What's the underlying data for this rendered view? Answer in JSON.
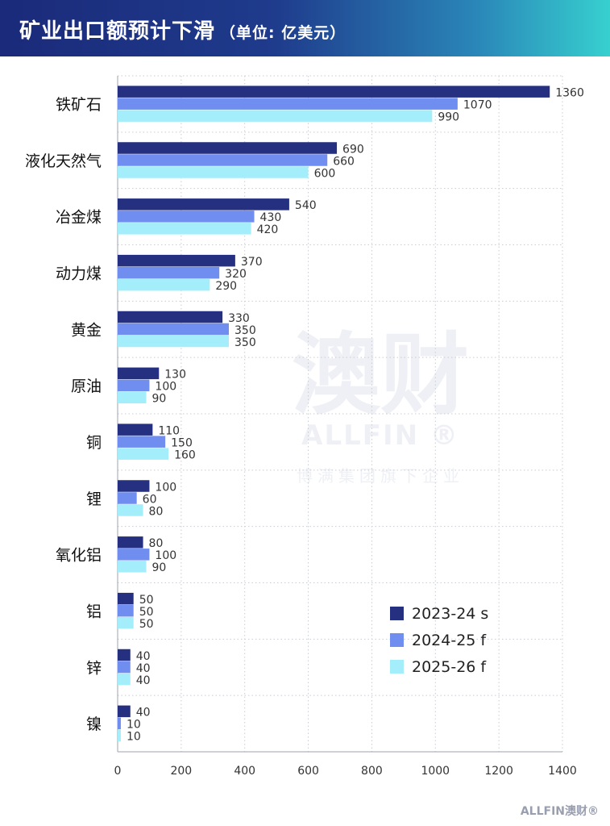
{
  "header": {
    "title": "矿业出口额预计下滑",
    "unit": "（单位: 亿美元）"
  },
  "watermark": {
    "big": "澳财",
    "en": "ALLFIN ®",
    "sub": "博满集团旗下企业"
  },
  "footer": {
    "logo": "ALLFIN澳财®"
  },
  "colors": {
    "series1": "#253081",
    "series2": "#6f8ef0",
    "series3": "#a4eefb",
    "header_start": "#1b2a7a",
    "header_end": "#37d0cf"
  },
  "chart_data": {
    "type": "bar",
    "orientation": "horizontal",
    "categories": [
      "铁矿石",
      "液化天然气",
      "冶金煤",
      "动力煤",
      "黄金",
      "原油",
      "铜",
      "锂",
      "氧化铝",
      "铝",
      "锌",
      "镍"
    ],
    "series": [
      {
        "name": "2023-24 s",
        "values": [
          1360,
          690,
          540,
          370,
          330,
          130,
          110,
          100,
          80,
          50,
          40,
          40
        ]
      },
      {
        "name": "2024-25 f",
        "values": [
          1070,
          660,
          430,
          320,
          350,
          100,
          150,
          60,
          100,
          50,
          40,
          10
        ]
      },
      {
        "name": "2025-26 f",
        "values": [
          990,
          600,
          420,
          290,
          350,
          90,
          160,
          80,
          90,
          50,
          40,
          10
        ]
      }
    ],
    "xlim": [
      0,
      1400
    ],
    "xticks": [
      0,
      200,
      400,
      600,
      800,
      1000,
      1200,
      1400
    ],
    "grid": true,
    "legend_position": "bottom-right"
  }
}
